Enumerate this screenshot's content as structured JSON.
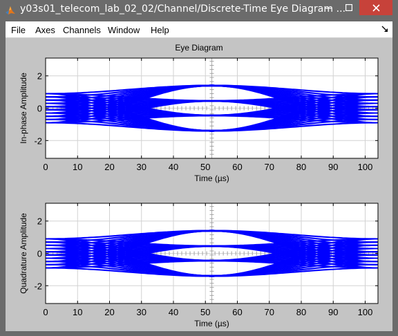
{
  "window": {
    "title": "y03s01_telecom_lab_02_02/Channel/Discrete-Time Eye Diagram ...",
    "icons": {
      "app": "matlab-logo-icon",
      "minimize": "minimize-icon",
      "maximize": "maximize-icon",
      "close": "close-icon",
      "dock": "dock-arrow-icon"
    }
  },
  "menu": {
    "file": "File",
    "axes": "Axes",
    "channels": "Channels",
    "window": "Window",
    "help": "Help"
  },
  "figure": {
    "title": "Eye Diagram"
  },
  "colors": {
    "trace": "#0000ff",
    "grid": "#d2d2d2",
    "background": "#c4c4c4",
    "close": "#c7423a"
  },
  "chart_data": [
    {
      "type": "line",
      "title": "Eye Diagram",
      "xlabel": "Time (µs)",
      "ylabel": "In-phase Amplitude",
      "xlim": [
        0,
        104
      ],
      "ylim": [
        -3.1,
        3.1
      ],
      "xticks": [
        0,
        10,
        20,
        30,
        40,
        50,
        60,
        70,
        80,
        90,
        100
      ],
      "yticks": [
        -2,
        0,
        2
      ],
      "grid": true,
      "symbol_center_us": 52,
      "eye_levels": [
        -1.4,
        -0.45,
        0.45,
        1.4
      ],
      "edge_levels": [
        -0.9,
        -0.7,
        -0.5,
        -0.3,
        -0.1,
        0.1,
        0.3,
        0.5,
        0.7,
        0.9
      ]
    },
    {
      "type": "line",
      "title": "",
      "xlabel": "Time (µs)",
      "ylabel": "Quadrature Amplitude",
      "xlim": [
        0,
        104
      ],
      "ylim": [
        -3.1,
        3.1
      ],
      "xticks": [
        0,
        10,
        20,
        30,
        40,
        50,
        60,
        70,
        80,
        90,
        100
      ],
      "yticks": [
        -2,
        0,
        2
      ],
      "grid": true,
      "symbol_center_us": 52,
      "eye_levels": [
        -1.4,
        -0.45,
        0.45,
        1.4
      ],
      "edge_levels": [
        -0.9,
        -0.7,
        -0.5,
        -0.3,
        -0.1,
        0.1,
        0.3,
        0.5,
        0.7,
        0.9
      ]
    }
  ]
}
